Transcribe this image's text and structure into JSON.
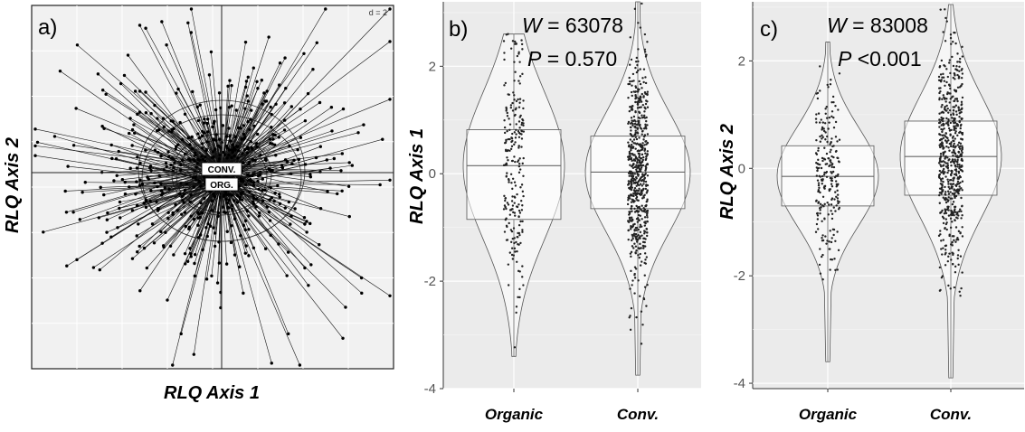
{
  "chart_data": [
    {
      "panel": "a)",
      "type": "scatter",
      "d_scale": "d = 2",
      "xlabel": "RLQ Axis 1",
      "ylabel": "RLQ Axis 2",
      "groups": [
        "CONV.",
        "ORG."
      ],
      "grid": true
    },
    {
      "panel": "b)",
      "type": "violin",
      "stat_W_label": "W",
      "stat_W_value": "= 63078",
      "stat_P_label": "P",
      "stat_P_value": "= 0.570",
      "ylabel": "RLQ Axis 1",
      "categories": [
        "Organic",
        "Conv."
      ],
      "yticks": [
        "2",
        "0",
        "-2",
        "-4"
      ],
      "ylim": [
        -4,
        3.2
      ],
      "series": [
        {
          "q1": -0.85,
          "median": 0.15,
          "q3": 0.82,
          "min": -3.4,
          "max": 2.6
        },
        {
          "q1": -0.65,
          "median": 0.03,
          "q3": 0.7,
          "min": -3.75,
          "max": 3.2
        }
      ]
    },
    {
      "panel": "c)",
      "type": "violin",
      "stat_W_label": "W",
      "stat_W_value": "= 83008",
      "stat_P_label": "P",
      "stat_P_value": "<0.001",
      "ylabel": "RLQ Axis 2",
      "categories": [
        "Organic",
        "Conv."
      ],
      "yticks": [
        "2",
        "0",
        "-2",
        "-4"
      ],
      "ylim": [
        -4.1,
        3.1
      ],
      "series": [
        {
          "q1": -0.7,
          "median": -0.15,
          "q3": 0.42,
          "min": -3.6,
          "max": 2.35
        },
        {
          "q1": -0.5,
          "median": 0.22,
          "q3": 0.88,
          "min": -3.9,
          "max": 3.05
        }
      ]
    }
  ]
}
